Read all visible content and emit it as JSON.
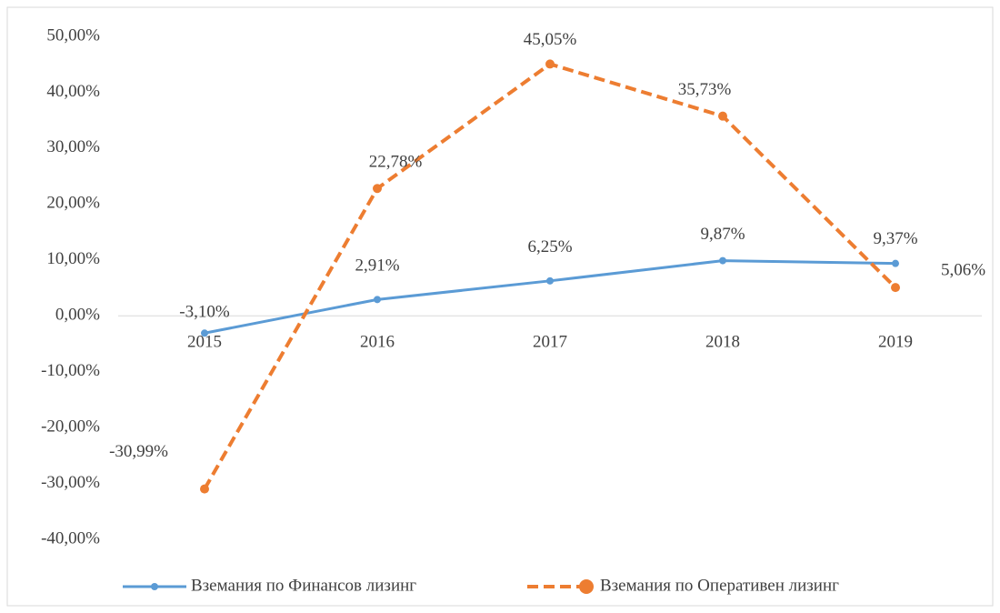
{
  "chart_data": {
    "type": "line",
    "categories": [
      "2015",
      "2016",
      "2017",
      "2018",
      "2019"
    ],
    "series": [
      {
        "name": "Вземания по Финансов лизинг",
        "color": "#5b9bd5",
        "values": [
          -3.1,
          2.91,
          6.25,
          9.87,
          9.37
        ],
        "value_labels": [
          "-3,10%",
          "2,91%",
          "6,25%",
          "9,87%",
          "9,37%"
        ]
      },
      {
        "name": "Вземания по Оперативен лизинг",
        "color": "#ed7d31",
        "values": [
          -30.99,
          22.78,
          45.05,
          35.73,
          5.06
        ],
        "value_labels": [
          "-30,99%",
          "22,78%",
          "45,05%",
          "35,73%",
          "5,06%"
        ]
      }
    ],
    "ylim": [
      -40,
      50
    ],
    "yticks": [
      {
        "value": -40,
        "label": "-40,00%"
      },
      {
        "value": -30,
        "label": "-30,00%"
      },
      {
        "value": -20,
        "label": "-20,00%"
      },
      {
        "value": -10,
        "label": "-10,00%"
      },
      {
        "value": 0,
        "label": "0,00%"
      },
      {
        "value": 10,
        "label": "10,00%"
      },
      {
        "value": 20,
        "label": "20,00%"
      },
      {
        "value": 30,
        "label": "30,00%"
      },
      {
        "value": 40,
        "label": "40,00%"
      },
      {
        "value": 50,
        "label": "50,00%"
      }
    ],
    "grid": false,
    "legend": "bottom"
  }
}
